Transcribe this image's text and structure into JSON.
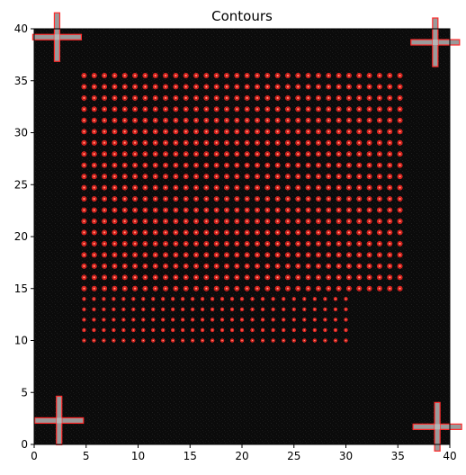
{
  "chart_data": {
    "type": "scatter",
    "title": "Contours",
    "xlabel": "",
    "ylabel": "",
    "xlim": [
      0,
      40
    ],
    "ylim": [
      0,
      40
    ],
    "xticks": [
      0,
      5,
      10,
      15,
      20,
      25,
      30,
      35,
      40
    ],
    "yticks": [
      0,
      5,
      10,
      15,
      20,
      25,
      30,
      35,
      40
    ],
    "grid": false,
    "legend": "none",
    "background_color": "#0b0b0b",
    "contour_color": "#ff2a2a",
    "markers": [
      {
        "kind": "cross",
        "x": 2.2,
        "y": 39.2
      },
      {
        "kind": "cross",
        "x": 38.6,
        "y": 38.7
      },
      {
        "kind": "cross",
        "x": 2.4,
        "y": 2.3
      },
      {
        "kind": "cross",
        "x": 38.8,
        "y": 1.7
      }
    ],
    "spot_grids": [
      {
        "name": "upper",
        "x_start": 4.8,
        "x_end": 35.2,
        "columns": 32,
        "y_start": 15.0,
        "y_end": 35.5,
        "rows": 20,
        "size": "large"
      },
      {
        "name": "lower-left",
        "x_start": 4.8,
        "x_end": 20.0,
        "columns": 17,
        "y_start": 10.0,
        "y_end": 14.0,
        "rows": 5,
        "size": "small"
      },
      {
        "name": "lower-right",
        "x_start": 21.0,
        "x_end": 30.0,
        "columns": 10,
        "y_start": 10.0,
        "y_end": 14.0,
        "rows": 5,
        "size": "small"
      }
    ]
  }
}
